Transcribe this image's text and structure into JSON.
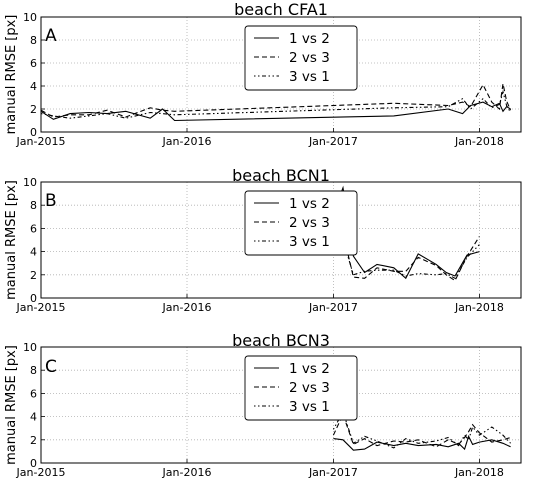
{
  "figure": {
    "ylabel": "manual RMSE [px]",
    "legend_labels": [
      "1 vs 2",
      "2 vs 3",
      "3 vs 1"
    ]
  },
  "chart_data": [
    {
      "type": "line",
      "panel_label": "A",
      "title": "beach CFA1",
      "ylabel": "manual RMSE [px]",
      "xlabel": "",
      "x_ticks": [
        "Jan-2015",
        "Jan-2016",
        "Jan-2017",
        "Jan-2018"
      ],
      "y_ticks": [
        "0",
        "2",
        "4",
        "6",
        "8",
        "10"
      ],
      "xlim": [
        "2015-01-01",
        "2018-04-15"
      ],
      "ylim": [
        0,
        10
      ],
      "grid": true,
      "legend_position": "top-center",
      "series": [
        {
          "name": "1 vs 2",
          "x": [
            "2015-01-01",
            "2015-02-01",
            "2015-03-15",
            "2015-05-01",
            "2015-06-15",
            "2015-08-01",
            "2015-10-01",
            "2015-11-01",
            "2015-12-01",
            "2017-06-01",
            "2017-10-15",
            "2017-11-20",
            "2017-12-10",
            "2018-01-10",
            "2018-02-01",
            "2018-02-20",
            "2018-03-01",
            "2018-03-10",
            "2018-03-20"
          ],
          "values": [
            1.8,
            1.1,
            1.6,
            1.7,
            1.6,
            1.8,
            1.2,
            2.0,
            1.0,
            1.4,
            2.0,
            1.6,
            2.3,
            2.6,
            2.2,
            2.5,
            1.8,
            2.2,
            2.0
          ]
        },
        {
          "name": "2 vs 3",
          "x": [
            "2015-01-01",
            "2015-02-01",
            "2015-03-15",
            "2015-05-01",
            "2015-06-15",
            "2015-08-01",
            "2015-10-01",
            "2015-11-01",
            "2015-12-01",
            "2017-06-01",
            "2017-10-15",
            "2017-11-20",
            "2017-12-10",
            "2018-01-10",
            "2018-02-01",
            "2018-02-20",
            "2018-03-01",
            "2018-03-10",
            "2018-03-20"
          ],
          "values": [
            1.9,
            1.3,
            1.5,
            1.5,
            1.9,
            1.3,
            2.1,
            1.9,
            1.8,
            2.5,
            2.3,
            2.6,
            2.2,
            4.1,
            2.6,
            2.0,
            4.2,
            2.7,
            1.9
          ]
        },
        {
          "name": "3 vs 1",
          "x": [
            "2015-01-01",
            "2015-02-01",
            "2015-03-15",
            "2015-05-01",
            "2015-06-15",
            "2015-08-01",
            "2015-10-01",
            "2015-11-01",
            "2015-12-01",
            "2017-06-01",
            "2017-10-15",
            "2017-11-20",
            "2017-12-10",
            "2018-01-10",
            "2018-02-01",
            "2018-02-20",
            "2018-03-01",
            "2018-03-10",
            "2018-03-20"
          ],
          "values": [
            1.6,
            1.4,
            1.2,
            1.4,
            1.6,
            1.2,
            1.7,
            1.6,
            1.5,
            2.1,
            2.2,
            2.9,
            2.0,
            2.9,
            2.1,
            2.4,
            3.5,
            2.3,
            1.7
          ]
        }
      ]
    },
    {
      "type": "line",
      "panel_label": "B",
      "title": "beach BCN1",
      "ylabel": "manual RMSE [px]",
      "xlabel": "",
      "x_ticks": [
        "Jan-2015",
        "Jan-2016",
        "Jan-2017",
        "Jan-2018"
      ],
      "y_ticks": [
        "0",
        "2",
        "4",
        "6",
        "8",
        "10"
      ],
      "xlim": [
        "2015-01-01",
        "2018-04-15"
      ],
      "ylim": [
        0,
        10
      ],
      "grid": true,
      "legend_position": "top-center",
      "series": [
        {
          "name": "1 vs 2",
          "x": [
            "2017-01-01",
            "2017-01-25",
            "2017-02-20",
            "2017-03-20",
            "2017-04-20",
            "2017-06-01",
            "2017-07-01",
            "2017-08-01",
            "2017-09-15",
            "2017-10-10",
            "2017-11-01",
            "2017-12-01",
            "2018-01-01"
          ],
          "values": [
            7.3,
            9.5,
            3.6,
            2.2,
            2.9,
            2.6,
            1.7,
            3.8,
            2.9,
            2.2,
            1.9,
            3.7,
            4.0
          ]
        },
        {
          "name": "2 vs 3",
          "x": [
            "2017-01-01",
            "2017-01-25",
            "2017-02-20",
            "2017-03-20",
            "2017-04-20",
            "2017-06-01",
            "2017-07-01",
            "2017-08-01",
            "2017-09-15",
            "2017-10-10",
            "2017-11-01",
            "2017-12-01",
            "2018-01-01"
          ],
          "values": [
            4.3,
            5.6,
            1.8,
            1.7,
            2.6,
            2.3,
            2.3,
            3.5,
            2.8,
            2.0,
            1.5,
            3.6,
            5.3
          ]
        },
        {
          "name": "3 vs 1",
          "x": [
            "2017-01-01",
            "2017-01-25",
            "2017-02-20",
            "2017-03-20",
            "2017-04-20",
            "2017-06-01",
            "2017-07-01",
            "2017-08-01",
            "2017-09-15",
            "2017-10-10",
            "2017-11-01",
            "2017-12-01",
            "2018-01-01"
          ],
          "values": [
            4.0,
            5.0,
            2.0,
            2.3,
            2.4,
            2.4,
            1.9,
            2.1,
            2.0,
            2.1,
            1.7,
            3.5,
            4.6
          ]
        }
      ]
    },
    {
      "type": "line",
      "panel_label": "C",
      "title": "beach BCN3",
      "ylabel": "manual RMSE [px]",
      "xlabel": "",
      "x_ticks": [
        "Jan-2015",
        "Jan-2016",
        "Jan-2017",
        "Jan-2018"
      ],
      "y_ticks": [
        "0",
        "2",
        "4",
        "6",
        "8",
        "10"
      ],
      "xlim": [
        "2015-01-01",
        "2018-04-15"
      ],
      "ylim": [
        0,
        10
      ],
      "grid": true,
      "legend_position": "top-center",
      "series": [
        {
          "name": "1 vs 2",
          "x": [
            "2017-01-01",
            "2017-01-25",
            "2017-02-20",
            "2017-03-20",
            "2017-04-20",
            "2017-06-01",
            "2017-07-01",
            "2017-08-01",
            "2017-09-15",
            "2017-10-15",
            "2017-11-10",
            "2017-11-25",
            "2017-12-05",
            "2017-12-15",
            "2018-01-01",
            "2018-02-01",
            "2018-03-01",
            "2018-03-20"
          ],
          "values": [
            2.1,
            2.0,
            1.1,
            1.2,
            1.8,
            1.5,
            1.7,
            1.5,
            1.6,
            1.4,
            1.7,
            1.2,
            2.3,
            1.6,
            1.8,
            2.0,
            1.7,
            1.4
          ]
        },
        {
          "name": "2 vs 3",
          "x": [
            "2017-01-01",
            "2017-01-25",
            "2017-02-20",
            "2017-03-20",
            "2017-04-20",
            "2017-06-01",
            "2017-07-01",
            "2017-08-01",
            "2017-09-15",
            "2017-10-15",
            "2017-11-10",
            "2017-11-25",
            "2017-12-05",
            "2017-12-15",
            "2018-01-01",
            "2018-02-01",
            "2018-03-01",
            "2018-03-20"
          ],
          "values": [
            2.4,
            4.2,
            1.6,
            2.1,
            1.5,
            1.9,
            1.8,
            2.0,
            1.4,
            2.0,
            1.6,
            2.2,
            2.7,
            3.3,
            2.6,
            1.8,
            2.0,
            2.2
          ]
        },
        {
          "name": "3 vs 1",
          "x": [
            "2017-01-01",
            "2017-01-25",
            "2017-02-20",
            "2017-03-20",
            "2017-04-20",
            "2017-06-01",
            "2017-07-01",
            "2017-08-01",
            "2017-09-15",
            "2017-10-15",
            "2017-11-10",
            "2017-11-25",
            "2017-12-05",
            "2017-12-15",
            "2018-01-01",
            "2018-02-01",
            "2018-03-01",
            "2018-03-20"
          ],
          "values": [
            2.9,
            4.4,
            1.7,
            2.3,
            1.9,
            1.3,
            2.1,
            1.7,
            1.9,
            2.2,
            1.5,
            2.4,
            2.0,
            3.1,
            2.4,
            3.1,
            2.4,
            1.7
          ]
        }
      ]
    }
  ]
}
